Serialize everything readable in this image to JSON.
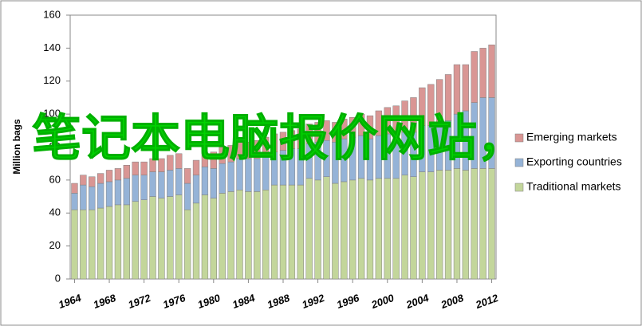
{
  "chart_data": {
    "type": "stacked-bar",
    "y_label": "Million bags",
    "x": [
      1964,
      1965,
      1966,
      1967,
      1968,
      1969,
      1970,
      1971,
      1972,
      1973,
      1974,
      1975,
      1976,
      1977,
      1978,
      1979,
      1980,
      1981,
      1982,
      1983,
      1984,
      1985,
      1986,
      1987,
      1988,
      1989,
      1990,
      1991,
      1992,
      1993,
      1994,
      1995,
      1996,
      1997,
      1998,
      1999,
      2000,
      2001,
      2002,
      2003,
      2004,
      2005,
      2006,
      2007,
      2008,
      2009,
      2010,
      2011,
      2012
    ],
    "xlim": [
      1963.5,
      2012.5
    ],
    "xticks": [
      1964,
      1968,
      1972,
      1976,
      1980,
      1984,
      1988,
      1992,
      1996,
      2000,
      2004,
      2008,
      2012
    ],
    "ylim": [
      0,
      160
    ],
    "yticks": [
      0,
      20,
      40,
      60,
      80,
      100,
      120,
      140,
      160
    ],
    "series": [
      {
        "name": "Traditional markets",
        "color": "#c3d69b",
        "values": [
          42,
          42,
          42,
          43,
          44,
          45,
          45,
          47,
          48,
          50,
          49,
          50,
          51,
          42,
          46,
          51,
          49,
          52,
          53,
          54,
          53,
          53,
          54,
          57,
          57,
          57,
          57,
          61,
          60,
          62,
          58,
          59,
          60,
          61,
          60,
          61,
          61,
          61,
          63,
          62,
          65,
          65,
          66,
          66,
          67,
          66,
          67,
          67,
          67
        ]
      },
      {
        "name": "Exporting countries",
        "color": "#95b3d7",
        "values": [
          10,
          15,
          14,
          15,
          15,
          15,
          16,
          16,
          15,
          15,
          16,
          16,
          16,
          16,
          17,
          17,
          18,
          18,
          18,
          19,
          20,
          20,
          21,
          20,
          21,
          22,
          22,
          21,
          23,
          22,
          25,
          26,
          26,
          26,
          25,
          26,
          27,
          27,
          26,
          27,
          28,
          28,
          29,
          30,
          33,
          36,
          40,
          43,
          43
        ]
      },
      {
        "name": "Emerging markets",
        "color": "#d99694",
        "values": [
          6,
          6,
          6,
          6,
          7,
          7,
          8,
          8,
          8,
          8,
          8,
          9,
          9,
          9,
          9,
          9,
          10,
          10,
          10,
          10,
          10,
          11,
          11,
          11,
          11,
          11,
          12,
          12,
          12,
          12,
          12,
          12,
          12,
          13,
          14,
          15,
          16,
          17,
          19,
          21,
          23,
          25,
          26,
          28,
          30,
          28,
          31,
          30,
          32
        ]
      }
    ],
    "watermark": "笔记本电脑报价网站，"
  }
}
